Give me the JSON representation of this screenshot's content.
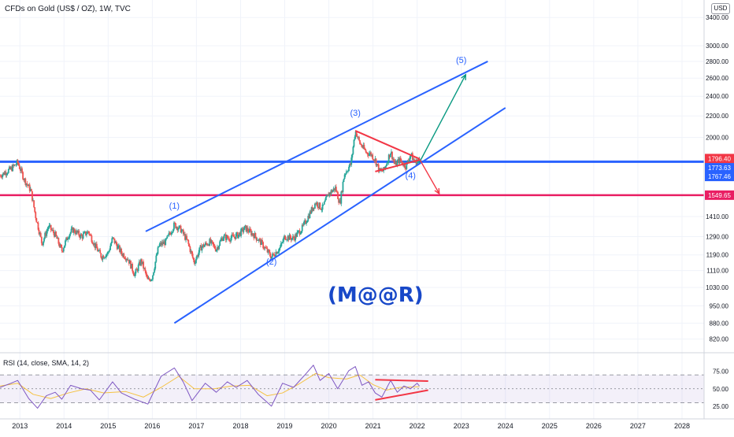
{
  "header": {
    "title": "CFDs on Gold (US$ / OZ), 1W, TVC",
    "currency": "USD",
    "rsi_title": "RSI (14, close, SMA, 14, 2)"
  },
  "watermark": "(M@@R)",
  "colors": {
    "up": "#26a69a",
    "down": "#ef5350",
    "channel": "#2962ff",
    "resistance": "#2962ff",
    "support": "#e91e63",
    "triangle": "#f23645",
    "arrow_up": "#089981",
    "rsi": "#7e57c2",
    "rsi_ma": "#f5c242"
  },
  "chart_data": [
    {
      "type": "candlestick",
      "title": "CFDs on Gold (US$ / OZ), 1W, TVC",
      "y_scale": "log",
      "ylim": [
        780,
        3450
      ],
      "xlim": [
        2012.55,
        2028.5
      ],
      "y_ticks": [
        "820.00",
        "880.00",
        "950.00",
        "1030.00",
        "1110.00",
        "1190.00",
        "1290.00",
        "1410.00",
        "1549.65",
        "1767.46",
        "1773.63",
        "1796.40",
        "2000.00",
        "2200.00",
        "2400.00",
        "2600.00",
        "2800.00",
        "3000.00",
        "3400.00"
      ],
      "x_ticks": [
        "2013",
        "2014",
        "2015",
        "2016",
        "2017",
        "2018",
        "2019",
        "2020",
        "2021",
        "2022",
        "2023",
        "2024",
        "2025",
        "2026",
        "2027",
        "2028"
      ],
      "price_path": [
        [
          2012.55,
          1690
        ],
        [
          2012.8,
          1740
        ],
        [
          2012.95,
          1790
        ],
        [
          2013.1,
          1660
        ],
        [
          2013.25,
          1580
        ],
        [
          2013.35,
          1420
        ],
        [
          2013.5,
          1250
        ],
        [
          2013.65,
          1350
        ],
        [
          2013.8,
          1300
        ],
        [
          2013.95,
          1210
        ],
        [
          2014.1,
          1300
        ],
        [
          2014.2,
          1330
        ],
        [
          2014.4,
          1290
        ],
        [
          2014.55,
          1320
        ],
        [
          2014.7,
          1240
        ],
        [
          2014.85,
          1180
        ],
        [
          2015.0,
          1200
        ],
        [
          2015.1,
          1280
        ],
        [
          2015.3,
          1200
        ],
        [
          2015.45,
          1170
        ],
        [
          2015.6,
          1090
        ],
        [
          2015.75,
          1160
        ],
        [
          2015.9,
          1060
        ],
        [
          2016.0,
          1080
        ],
        [
          2016.15,
          1240
        ],
        [
          2016.3,
          1260
        ],
        [
          2016.5,
          1360
        ],
        [
          2016.65,
          1330
        ],
        [
          2016.8,
          1260
        ],
        [
          2016.95,
          1150
        ],
        [
          2017.1,
          1230
        ],
        [
          2017.3,
          1260
        ],
        [
          2017.45,
          1220
        ],
        [
          2017.6,
          1290
        ],
        [
          2017.75,
          1280
        ],
        [
          2017.95,
          1300
        ],
        [
          2018.1,
          1340
        ],
        [
          2018.3,
          1300
        ],
        [
          2018.45,
          1260
        ],
        [
          2018.6,
          1210
        ],
        [
          2018.7,
          1180
        ],
        [
          2018.9,
          1230
        ],
        [
          2019.0,
          1290
        ],
        [
          2019.2,
          1280
        ],
        [
          2019.4,
          1340
        ],
        [
          2019.55,
          1420
        ],
        [
          2019.7,
          1500
        ],
        [
          2019.85,
          1460
        ],
        [
          2020.0,
          1560
        ],
        [
          2020.15,
          1600
        ],
        [
          2020.25,
          1490
        ],
        [
          2020.35,
          1700
        ],
        [
          2020.5,
          1780
        ],
        [
          2020.6,
          2060
        ],
        [
          2020.7,
          1950
        ],
        [
          2020.85,
          1870
        ],
        [
          2020.95,
          1860
        ],
        [
          2021.05,
          1810
        ],
        [
          2021.15,
          1720
        ],
        [
          2021.25,
          1730
        ],
        [
          2021.4,
          1880
        ],
        [
          2021.5,
          1770
        ],
        [
          2021.6,
          1810
        ],
        [
          2021.75,
          1760
        ],
        [
          2021.85,
          1860
        ],
        [
          2021.95,
          1790
        ],
        [
          2022.05,
          1810
        ]
      ],
      "series": [
        {
          "name": "Resistance",
          "value": 1796.4
        },
        {
          "name": "Support",
          "value": 1549.65
        }
      ],
      "price_labels": [
        {
          "text": "1796.40",
          "value": 1796.4
        },
        {
          "text": "1773.63",
          "value": 1773.63
        },
        {
          "text": "1767.46",
          "value": 1767.46
        },
        {
          "text": "1549.65",
          "value": 1549.65
        }
      ],
      "annotations": [
        {
          "text": "(1)",
          "x": 2016.5,
          "y": 1460
        },
        {
          "text": "(2)",
          "x": 2018.7,
          "y": 1140
        },
        {
          "text": "(3)",
          "x": 2020.6,
          "y": 2200
        },
        {
          "text": "(4)",
          "x": 2021.85,
          "y": 1670
        },
        {
          "text": "(5)",
          "x": 2023.0,
          "y": 2780
        }
      ],
      "trendlines": [
        {
          "name": "channel-upper",
          "from": [
            2015.85,
            1320
          ],
          "to": [
            2023.6,
            2800
          ]
        },
        {
          "name": "channel-lower",
          "from": [
            2016.5,
            880
          ],
          "to": [
            2024.0,
            2280
          ]
        },
        {
          "name": "triangle-upper",
          "from": [
            2020.6,
            2060
          ],
          "to": [
            2022.05,
            1820
          ]
        },
        {
          "name": "triangle-lower",
          "from": [
            2021.05,
            1720
          ],
          "to": [
            2022.05,
            1810
          ]
        },
        {
          "name": "arrow-up",
          "from": [
            2022.05,
            1790
          ],
          "to": [
            2023.1,
            2640
          ]
        },
        {
          "name": "arrow-down",
          "from": [
            2022.05,
            1820
          ],
          "to": [
            2022.5,
            1560
          ]
        }
      ]
    },
    {
      "type": "line",
      "title": "RSI (14, close, SMA, 14, 2)",
      "ylim": [
        18,
        86
      ],
      "y_ticks": [
        "75.00",
        "50.00",
        "25.00"
      ],
      "band": [
        30,
        70
      ],
      "series": [
        {
          "name": "RSI",
          "values": [
            [
              2012.55,
              52
            ],
            [
              2012.8,
              58
            ],
            [
              2012.95,
              62
            ],
            [
              2013.2,
              36
            ],
            [
              2013.4,
              22
            ],
            [
              2013.6,
              40
            ],
            [
              2013.8,
              45
            ],
            [
              2013.95,
              35
            ],
            [
              2014.15,
              55
            ],
            [
              2014.4,
              50
            ],
            [
              2014.6,
              48
            ],
            [
              2014.8,
              34
            ],
            [
              2015.1,
              60
            ],
            [
              2015.3,
              44
            ],
            [
              2015.6,
              35
            ],
            [
              2015.9,
              28
            ],
            [
              2016.2,
              68
            ],
            [
              2016.5,
              80
            ],
            [
              2016.7,
              60
            ],
            [
              2016.9,
              33
            ],
            [
              2017.2,
              58
            ],
            [
              2017.45,
              45
            ],
            [
              2017.7,
              60
            ],
            [
              2017.9,
              52
            ],
            [
              2018.15,
              62
            ],
            [
              2018.4,
              42
            ],
            [
              2018.7,
              25
            ],
            [
              2018.95,
              58
            ],
            [
              2019.2,
              52
            ],
            [
              2019.5,
              73
            ],
            [
              2019.65,
              84
            ],
            [
              2019.8,
              62
            ],
            [
              2020.0,
              72
            ],
            [
              2020.2,
              50
            ],
            [
              2020.45,
              76
            ],
            [
              2020.6,
              82
            ],
            [
              2020.75,
              55
            ],
            [
              2020.9,
              60
            ],
            [
              2021.05,
              44
            ],
            [
              2021.2,
              38
            ],
            [
              2021.4,
              62
            ],
            [
              2021.55,
              45
            ],
            [
              2021.7,
              54
            ],
            [
              2021.85,
              50
            ],
            [
              2022.0,
              58
            ],
            [
              2022.05,
              54
            ]
          ]
        },
        {
          "name": "MA",
          "values": [
            [
              2012.55,
              54
            ],
            [
              2012.95,
              58
            ],
            [
              2013.3,
              42
            ],
            [
              2013.7,
              36
            ],
            [
              2014.1,
              44
            ],
            [
              2014.5,
              50
            ],
            [
              2014.9,
              44
            ],
            [
              2015.4,
              46
            ],
            [
              2015.8,
              38
            ],
            [
              2016.2,
              52
            ],
            [
              2016.6,
              68
            ],
            [
              2016.95,
              50
            ],
            [
              2017.4,
              50
            ],
            [
              2017.8,
              54
            ],
            [
              2018.2,
              55
            ],
            [
              2018.6,
              40
            ],
            [
              2018.95,
              44
            ],
            [
              2019.3,
              56
            ],
            [
              2019.7,
              72
            ],
            [
              2020.0,
              66
            ],
            [
              2020.4,
              64
            ],
            [
              2020.7,
              70
            ],
            [
              2021.0,
              56
            ],
            [
              2021.3,
              48
            ],
            [
              2021.6,
              52
            ],
            [
              2022.05,
              53
            ]
          ]
        }
      ],
      "trendlines": [
        {
          "name": "rsi-upper-line",
          "from": [
            2021.05,
            63
          ],
          "to": [
            2022.25,
            61
          ]
        },
        {
          "name": "rsi-lower-line",
          "from": [
            2021.05,
            34
          ],
          "to": [
            2022.25,
            48
          ]
        }
      ]
    }
  ]
}
